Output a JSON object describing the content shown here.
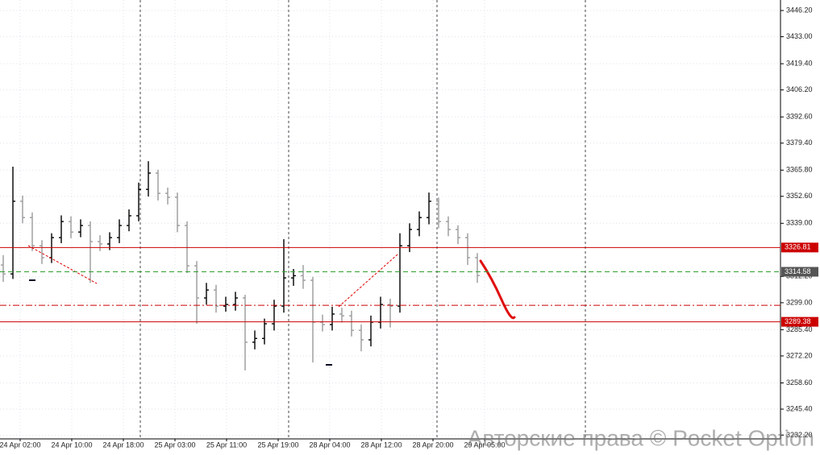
{
  "chart_data": {
    "type": "ohlc",
    "open": [
      3318.0,
      3313.5,
      3350.1,
      3341.9,
      3327.7,
      3321.7,
      3331.8,
      3339.9,
      3334.6,
      3337.9,
      3329.8,
      3328.6,
      3331.8,
      3337.9,
      3342.8,
      3356.1,
      3364.3,
      3354.1,
      3352.1,
      3337.9,
      3317.6,
      3301.4,
      3305.4,
      3297.3,
      3298.1,
      3301.4,
      3279.1,
      3281.0,
      3288.4,
      3297.3,
      3311.5,
      3312.6,
      3310.3,
      3289.2,
      3288.0,
      3293.3,
      3292.4,
      3285.1,
      3280.3,
      3289.2,
      3298.1,
      3297.3,
      3327.7,
      3335.9,
      3341.9,
      3350.1,
      3339.9,
      3335.9,
      3331.8,
      3321.7
    ],
    "high": [
      3323.0,
      3367.5,
      3353.0,
      3344.5,
      3330.5,
      3334.0,
      3343.0,
      3342.5,
      3341.0,
      3340.0,
      3333.0,
      3334.5,
      3341.0,
      3346.0,
      3359.5,
      3370.3,
      3366.0,
      3357.0,
      3354.5,
      3340.0,
      3320.0,
      3309.0,
      3308.0,
      3302.0,
      3304.5,
      3303.0,
      3285.0,
      3291.0,
      3300.5,
      3331.0,
      3316.0,
      3318.0,
      3312.0,
      3293.0,
      3297.0,
      3296.5,
      3295.0,
      3288.0,
      3292.5,
      3302.0,
      3301.0,
      3334.0,
      3339.0,
      3345.0,
      3354.5,
      3352.0,
      3342.5,
      3338.0,
      3334.0,
      3324.0
    ],
    "low": [
      3309.5,
      3311.0,
      3339.0,
      3325.0,
      3318.5,
      3319.0,
      3329.0,
      3331.5,
      3332.0,
      3309.0,
      3325.0,
      3325.5,
      3329.0,
      3335.0,
      3340.0,
      3352.5,
      3350.5,
      3348.5,
      3334.5,
      3314.0,
      3288.4,
      3298.0,
      3294.0,
      3294.5,
      3295.0,
      3264.9,
      3275.5,
      3278.0,
      3285.0,
      3294.0,
      3307.5,
      3306.0,
      3268.9,
      3284.5,
      3285.0,
      3289.0,
      3282.0,
      3274.5,
      3277.0,
      3286.0,
      3286.5,
      3294.0,
      3324.5,
      3332.5,
      3338.5,
      3336.5,
      3332.5,
      3328.5,
      3318.0,
      3309.0
    ],
    "close": [
      3313.5,
      3350.1,
      3341.9,
      3327.7,
      3321.7,
      3331.8,
      3339.9,
      3334.6,
      3337.9,
      3329.8,
      3328.6,
      3331.8,
      3337.9,
      3342.8,
      3356.1,
      3364.3,
      3354.1,
      3352.1,
      3337.9,
      3317.6,
      3301.4,
      3305.4,
      3297.3,
      3298.1,
      3301.4,
      3279.1,
      3281.0,
      3288.4,
      3297.3,
      3311.5,
      3312.6,
      3310.3,
      3289.2,
      3288.0,
      3293.3,
      3292.4,
      3285.1,
      3280.3,
      3289.2,
      3298.1,
      3297.3,
      3327.7,
      3335.9,
      3341.9,
      3350.1,
      3339.9,
      3335.9,
      3331.8,
      3321.7,
      3312.7
    ],
    "up_color": "#000000",
    "down_color": "#9a9a9a",
    "time_labels": [
      "24 Apr 02:00",
      "24 Apr 10:00",
      "24 Apr 18:00",
      "25 Apr 03:00",
      "25 Apr 11:00",
      "25 Apr 19:00",
      "28 Apr 04:00",
      "28 Apr 12:00",
      "28 Apr 20:00",
      "29 Apr 05:00"
    ],
    "ylim": [
      3230.4,
      3451.5
    ],
    "yticks": [
      {
        "value": 3446.2,
        "label": "3446.20"
      },
      {
        "value": 3433.0,
        "label": "3433.00"
      },
      {
        "value": 3419.4,
        "label": "3419.40"
      },
      {
        "value": 3406.2,
        "label": "3406.20"
      },
      {
        "value": 3392.6,
        "label": "3392.60"
      },
      {
        "value": 3379.4,
        "label": "3379.40"
      },
      {
        "value": 3365.8,
        "label": "3365.80"
      },
      {
        "value": 3352.6,
        "label": "3352.60"
      },
      {
        "value": 3339.0,
        "label": "3339.00"
      },
      {
        "value": 3312.2,
        "label": "3312.20"
      },
      {
        "value": 3299.0,
        "label": "3299.00"
      },
      {
        "value": 3285.4,
        "label": "3285.40"
      },
      {
        "value": 3272.2,
        "label": "3272.20"
      },
      {
        "value": 3258.6,
        "label": "3258.60"
      },
      {
        "value": 3245.4,
        "label": "3245.40"
      },
      {
        "value": 3232.2,
        "label": "3232.20"
      }
    ],
    "grid": true,
    "levels": [
      {
        "value": 3326.81,
        "color": "#cc0000",
        "label_color": "#cc0000",
        "style": "solid",
        "labeled": true
      },
      {
        "value": 3314.58,
        "color": "#2e9e2e",
        "label_color": "#555555",
        "style": "dashed",
        "labeled": true
      },
      {
        "value": 3297.7,
        "color": "#cc0000",
        "style": "dashdot",
        "labeled": false
      },
      {
        "value": 3289.38,
        "color": "#cc0000",
        "label_color": "#cc0000",
        "style": "solid",
        "labeled": true
      }
    ],
    "watermark": "Авторские права © Pocket Option"
  }
}
